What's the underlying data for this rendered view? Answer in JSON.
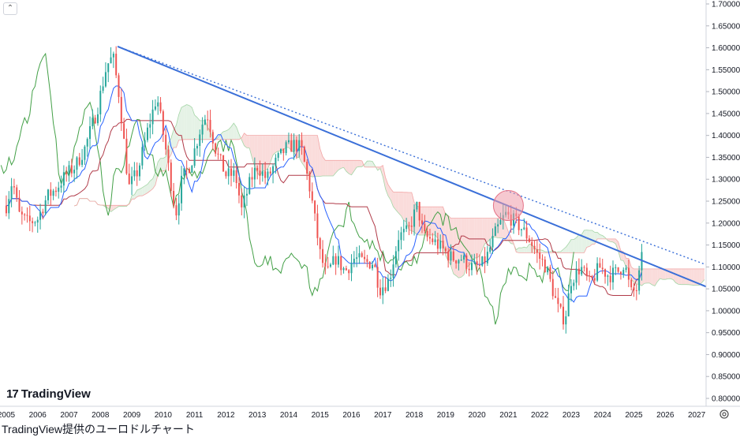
{
  "ui": {
    "collapse_icon": "chevron-up-icon",
    "brand_logo": "TradingView",
    "caption": "TradingView提供のユーロドルチャート",
    "settings_icon": "gear-icon"
  },
  "colors": {
    "up": "#26a69a",
    "down": "#ef5350",
    "kijun": "#b03a48",
    "tenkan": "#2962ff",
    "chikou": "#43a047",
    "cloud_bull": "#e5f2e6",
    "cloud_bear": "#fadcdb",
    "trendline": "#3a6fd8",
    "highlight": "#ef9aa9"
  },
  "chart_data": {
    "type": "candlestick",
    "instrument": "EUR/USD",
    "x_ticks": [
      "2005",
      "2006",
      "2007",
      "2008",
      "2009",
      "2010",
      "2011",
      "2012",
      "2013",
      "2014",
      "2015",
      "2016",
      "2017",
      "2018",
      "2019",
      "2020",
      "2021",
      "2022",
      "2023",
      "2024",
      "2025",
      "2026",
      "2027"
    ],
    "y_ticks": [
      "0.80000",
      "0.85000",
      "0.90000",
      "0.95000",
      "1.00000",
      "1.05000",
      "1.10000",
      "1.15000",
      "1.20000",
      "1.25000",
      "1.30000",
      "1.35000",
      "1.40000",
      "1.45000",
      "1.50000",
      "1.55000",
      "1.60000",
      "1.65000",
      "1.70000"
    ],
    "ylim": [
      0.8,
      1.7
    ],
    "xlim": [
      2004.8,
      2027.3
    ],
    "yaxis_side": "right",
    "grid": false,
    "closes": [
      [
        2005.0,
        1.24
      ],
      [
        2005.2,
        1.3
      ],
      [
        2005.4,
        1.22
      ],
      [
        2005.7,
        1.2
      ],
      [
        2006.0,
        1.21
      ],
      [
        2006.3,
        1.26
      ],
      [
        2006.6,
        1.28
      ],
      [
        2006.9,
        1.31
      ],
      [
        2007.2,
        1.33
      ],
      [
        2007.5,
        1.37
      ],
      [
        2007.9,
        1.46
      ],
      [
        2008.2,
        1.56
      ],
      [
        2008.4,
        1.58
      ],
      [
        2008.6,
        1.49
      ],
      [
        2008.9,
        1.28
      ],
      [
        2009.2,
        1.32
      ],
      [
        2009.5,
        1.41
      ],
      [
        2009.8,
        1.49
      ],
      [
        2010.1,
        1.36
      ],
      [
        2010.4,
        1.22
      ],
      [
        2010.6,
        1.3
      ],
      [
        2010.9,
        1.34
      ],
      [
        2011.2,
        1.42
      ],
      [
        2011.4,
        1.45
      ],
      [
        2011.7,
        1.36
      ],
      [
        2012.0,
        1.31
      ],
      [
        2012.3,
        1.31
      ],
      [
        2012.5,
        1.23
      ],
      [
        2012.8,
        1.3
      ],
      [
        2013.0,
        1.33
      ],
      [
        2013.3,
        1.3
      ],
      [
        2013.6,
        1.34
      ],
      [
        2013.9,
        1.37
      ],
      [
        2014.2,
        1.38
      ],
      [
        2014.4,
        1.37
      ],
      [
        2014.7,
        1.27
      ],
      [
        2015.0,
        1.13
      ],
      [
        2015.2,
        1.08
      ],
      [
        2015.5,
        1.12
      ],
      [
        2015.8,
        1.09
      ],
      [
        2016.1,
        1.12
      ],
      [
        2016.4,
        1.11
      ],
      [
        2016.7,
        1.11
      ],
      [
        2016.9,
        1.05
      ],
      [
        2017.2,
        1.07
      ],
      [
        2017.5,
        1.17
      ],
      [
        2017.8,
        1.18
      ],
      [
        2018.1,
        1.24
      ],
      [
        2018.3,
        1.17
      ],
      [
        2018.6,
        1.16
      ],
      [
        2018.9,
        1.14
      ],
      [
        2019.2,
        1.12
      ],
      [
        2019.5,
        1.12
      ],
      [
        2019.8,
        1.1
      ],
      [
        2020.1,
        1.1
      ],
      [
        2020.3,
        1.12
      ],
      [
        2020.6,
        1.18
      ],
      [
        2020.9,
        1.22
      ],
      [
        2021.1,
        1.21
      ],
      [
        2021.4,
        1.19
      ],
      [
        2021.7,
        1.16
      ],
      [
        2021.9,
        1.13
      ],
      [
        2022.2,
        1.1
      ],
      [
        2022.4,
        1.05
      ],
      [
        2022.6,
        1.0
      ],
      [
        2022.8,
        0.98
      ],
      [
        2023.0,
        1.07
      ],
      [
        2023.3,
        1.1
      ],
      [
        2023.6,
        1.06
      ],
      [
        2023.9,
        1.1
      ],
      [
        2024.2,
        1.08
      ],
      [
        2024.5,
        1.09
      ],
      [
        2024.7,
        1.11
      ],
      [
        2024.9,
        1.04
      ],
      [
        2025.1,
        1.05
      ],
      [
        2025.3,
        1.14
      ]
    ],
    "trendline": {
      "from": [
        2008.55,
        1.603
      ],
      "to": [
        2027.3,
        1.055
      ]
    },
    "parallel_dotted": {
      "from": [
        2008.55,
        1.603
      ],
      "to": [
        2027.3,
        1.105
      ]
    },
    "highlight_point": [
      2021.0,
      1.24
    ]
  }
}
